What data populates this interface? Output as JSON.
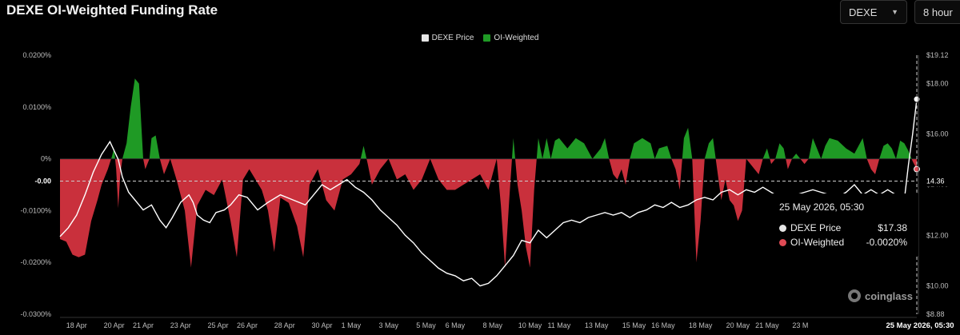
{
  "title": "DEXE OI-Weighted Funding Rate",
  "controls": {
    "symbol": "DEXE",
    "interval": "8 hour"
  },
  "colors": {
    "price_line": "#ffffff",
    "positive": "#1f9a25",
    "negative": "#c9303c",
    "crosshair": "#cccccc",
    "price_marker": "#ffffff",
    "funding_marker": "#e04b55"
  },
  "chart_data": {
    "type": "area",
    "legend_position": "top-center",
    "series": [
      {
        "name": "DEXE Price",
        "axis": "right",
        "type": "line",
        "values": [
          [
            0,
            11.95
          ],
          [
            4,
            12.3
          ],
          [
            8,
            12.8
          ],
          [
            12,
            13.6
          ],
          [
            16,
            14.5
          ],
          [
            20,
            15.2
          ],
          [
            24,
            15.7
          ],
          [
            28,
            15.0
          ],
          [
            30,
            14.3
          ],
          [
            33,
            13.7
          ],
          [
            36,
            13.4
          ],
          [
            40,
            13.0
          ],
          [
            44,
            13.2
          ],
          [
            48,
            12.6
          ],
          [
            51,
            12.3
          ],
          [
            54,
            12.7
          ],
          [
            58,
            13.3
          ],
          [
            62,
            13.6
          ],
          [
            64,
            13.3
          ],
          [
            66,
            12.8
          ],
          [
            69,
            12.6
          ],
          [
            72,
            12.5
          ],
          [
            75,
            12.9
          ],
          [
            79,
            13.0
          ],
          [
            82,
            13.2
          ],
          [
            86,
            13.6
          ],
          [
            90,
            13.5
          ],
          [
            95,
            13.0
          ],
          [
            100,
            13.3
          ],
          [
            106,
            13.6
          ],
          [
            112,
            13.4
          ],
          [
            118,
            13.2
          ],
          [
            122,
            13.6
          ],
          [
            126,
            14.0
          ],
          [
            130,
            13.8
          ],
          [
            134,
            14.0
          ],
          [
            138,
            14.2
          ],
          [
            142,
            13.9
          ],
          [
            146,
            13.7
          ],
          [
            150,
            13.4
          ],
          [
            154,
            13.0
          ],
          [
            158,
            12.7
          ],
          [
            162,
            12.4
          ],
          [
            166,
            12.0
          ],
          [
            170,
            11.7
          ],
          [
            174,
            11.3
          ],
          [
            178,
            11.0
          ],
          [
            182,
            10.7
          ],
          [
            186,
            10.5
          ],
          [
            190,
            10.4
          ],
          [
            194,
            10.2
          ],
          [
            198,
            10.3
          ],
          [
            202,
            10.0
          ],
          [
            206,
            10.1
          ],
          [
            210,
            10.4
          ],
          [
            214,
            10.8
          ],
          [
            218,
            11.2
          ],
          [
            222,
            11.8
          ],
          [
            226,
            11.7
          ],
          [
            230,
            12.2
          ],
          [
            234,
            11.9
          ],
          [
            238,
            12.2
          ],
          [
            242,
            12.5
          ],
          [
            246,
            12.6
          ],
          [
            250,
            12.5
          ],
          [
            254,
            12.7
          ],
          [
            258,
            12.8
          ],
          [
            262,
            12.9
          ],
          [
            266,
            12.8
          ],
          [
            270,
            12.9
          ],
          [
            274,
            12.7
          ],
          [
            278,
            12.9
          ],
          [
            282,
            13.0
          ],
          [
            286,
            13.2
          ],
          [
            290,
            13.1
          ],
          [
            294,
            13.3
          ],
          [
            298,
            13.1
          ],
          [
            302,
            13.2
          ],
          [
            306,
            13.4
          ],
          [
            310,
            13.5
          ],
          [
            314,
            13.4
          ],
          [
            318,
            13.7
          ],
          [
            322,
            13.8
          ],
          [
            326,
            13.6
          ],
          [
            330,
            13.8
          ],
          [
            334,
            13.7
          ],
          [
            338,
            13.9
          ],
          [
            342,
            13.7
          ],
          [
            346,
            13.5
          ],
          [
            348,
            13.1
          ],
          [
            350,
            13.5
          ],
          [
            354,
            13.6
          ],
          [
            358,
            13.7
          ],
          [
            362,
            13.8
          ],
          [
            366,
            13.7
          ],
          [
            370,
            13.6
          ],
          [
            374,
            13.5
          ],
          [
            378,
            13.7
          ],
          [
            382,
            14.0
          ],
          [
            386,
            13.6
          ],
          [
            390,
            13.8
          ],
          [
            394,
            13.6
          ],
          [
            398,
            13.8
          ],
          [
            402,
            13.6
          ],
          [
            406,
            13.4
          ],
          [
            408,
            14.8
          ],
          [
            410,
            16.0
          ],
          [
            412,
            17.38
          ]
        ]
      },
      {
        "name": "OI-Weighted",
        "axis": "left",
        "type": "area",
        "unit": "%",
        "values": [
          [
            0,
            -0.0155
          ],
          [
            3,
            -0.016
          ],
          [
            6,
            -0.0185
          ],
          [
            9,
            -0.019
          ],
          [
            12,
            -0.0185
          ],
          [
            15,
            -0.012
          ],
          [
            18,
            -0.008
          ],
          [
            20,
            -0.005
          ],
          [
            23,
            -0.002
          ],
          [
            25,
            0.0005
          ],
          [
            26,
            0.002
          ],
          [
            27,
            -0.002
          ],
          [
            28,
            -0.0095
          ],
          [
            29,
            -0.003
          ],
          [
            30,
            0.0
          ],
          [
            32,
            0.003
          ],
          [
            34,
            0.01
          ],
          [
            36,
            0.0155
          ],
          [
            38,
            0.0145
          ],
          [
            40,
            0.0
          ],
          [
            41,
            -0.002
          ],
          [
            43,
            0.0
          ],
          [
            44,
            0.004
          ],
          [
            46,
            0.0045
          ],
          [
            48,
            0.0
          ],
          [
            50,
            -0.003
          ],
          [
            53,
            0.0
          ],
          [
            56,
            -0.004
          ],
          [
            60,
            -0.01
          ],
          [
            63,
            -0.021
          ],
          [
            66,
            -0.009
          ],
          [
            70,
            -0.006
          ],
          [
            74,
            -0.007
          ],
          [
            78,
            -0.004
          ],
          [
            82,
            -0.012
          ],
          [
            85,
            -0.019
          ],
          [
            88,
            -0.004
          ],
          [
            91,
            -0.002
          ],
          [
            94,
            -0.004
          ],
          [
            97,
            -0.006
          ],
          [
            100,
            -0.01
          ],
          [
            103,
            -0.018
          ],
          [
            106,
            -0.0075
          ],
          [
            110,
            -0.0085
          ],
          [
            114,
            -0.013
          ],
          [
            117,
            -0.019
          ],
          [
            120,
            -0.005
          ],
          [
            124,
            -0.002
          ],
          [
            128,
            -0.008
          ],
          [
            132,
            -0.01
          ],
          [
            136,
            -0.004
          ],
          [
            140,
            -0.003
          ],
          [
            144,
            -0.001
          ],
          [
            146,
            0.0025
          ],
          [
            148,
            -0.001
          ],
          [
            150,
            -0.005
          ],
          [
            154,
            -0.002
          ],
          [
            158,
            0.0
          ],
          [
            162,
            -0.004
          ],
          [
            166,
            -0.003
          ],
          [
            170,
            -0.006
          ],
          [
            174,
            -0.004
          ],
          [
            178,
            0.0
          ],
          [
            182,
            -0.004
          ],
          [
            186,
            -0.006
          ],
          [
            190,
            -0.006
          ],
          [
            194,
            -0.005
          ],
          [
            198,
            -0.004
          ],
          [
            202,
            -0.003
          ],
          [
            206,
            -0.006
          ],
          [
            210,
            0.0
          ],
          [
            212,
            -0.009
          ],
          [
            214,
            -0.021
          ],
          [
            216,
            -0.008
          ],
          [
            218,
            0.004
          ],
          [
            220,
            -0.005
          ],
          [
            222,
            -0.01
          ],
          [
            224,
            -0.017
          ],
          [
            226,
            -0.021
          ],
          [
            228,
            -0.006
          ],
          [
            230,
            0.004
          ],
          [
            232,
            0.0
          ],
          [
            234,
            0.004
          ],
          [
            236,
            0.0
          ],
          [
            238,
            0.0035
          ],
          [
            240,
            0.004
          ],
          [
            244,
            0.002
          ],
          [
            248,
            0.004
          ],
          [
            252,
            0.003
          ],
          [
            256,
            0.0
          ],
          [
            260,
            0.002
          ],
          [
            262,
            0.004
          ],
          [
            264,
            0.0
          ],
          [
            266,
            -0.003
          ],
          [
            268,
            -0.004
          ],
          [
            270,
            -0.002
          ],
          [
            272,
            -0.005
          ],
          [
            274,
            0.0
          ],
          [
            276,
            0.003
          ],
          [
            280,
            0.004
          ],
          [
            284,
            0.003
          ],
          [
            286,
            0.0
          ],
          [
            288,
            0.002
          ],
          [
            292,
            0.0025
          ],
          [
            294,
            0.0
          ],
          [
            296,
            -0.002
          ],
          [
            298,
            -0.006
          ],
          [
            300,
            0.004
          ],
          [
            302,
            0.006
          ],
          [
            304,
            0.0
          ],
          [
            306,
            -0.02
          ],
          [
            308,
            -0.012
          ],
          [
            310,
            0.0
          ],
          [
            312,
            0.003
          ],
          [
            314,
            0.004
          ],
          [
            316,
            -0.002
          ],
          [
            318,
            -0.008
          ],
          [
            320,
            -0.004
          ],
          [
            322,
            -0.008
          ],
          [
            324,
            -0.009
          ],
          [
            326,
            -0.012
          ],
          [
            328,
            -0.01
          ],
          [
            330,
            0.0
          ],
          [
            332,
            -0.001
          ],
          [
            334,
            -0.002
          ],
          [
            336,
            -0.003
          ],
          [
            338,
            0.0
          ],
          [
            340,
            0.002
          ],
          [
            342,
            -0.001
          ],
          [
            344,
            0.0
          ],
          [
            346,
            0.003
          ],
          [
            348,
            0.002
          ],
          [
            350,
            -0.002
          ],
          [
            352,
            0.0
          ],
          [
            354,
            0.001
          ],
          [
            356,
            0.0
          ],
          [
            358,
            -0.001
          ],
          [
            360,
            0.0
          ],
          [
            362,
            0.004
          ],
          [
            364,
            0.002
          ],
          [
            366,
            0.0
          ],
          [
            368,
            0.0025
          ],
          [
            370,
            0.004
          ],
          [
            374,
            0.0035
          ],
          [
            378,
            0.002
          ],
          [
            382,
            0.001
          ],
          [
            386,
            0.004
          ],
          [
            388,
            0.0
          ],
          [
            390,
            -0.002
          ],
          [
            392,
            -0.003
          ],
          [
            394,
            0.0
          ],
          [
            396,
            0.0025
          ],
          [
            398,
            0.003
          ],
          [
            400,
            0.002
          ],
          [
            402,
            0.0
          ],
          [
            404,
            0.0035
          ],
          [
            406,
            0.003
          ],
          [
            408,
            0.0015
          ],
          [
            410,
            -0.0005
          ],
          [
            412,
            -0.002
          ]
        ]
      }
    ],
    "x_tick_labels": [
      "18 Apr",
      "20 Apr",
      "21 Apr",
      "23 Apr",
      "25 Apr",
      "26 Apr",
      "28 Apr",
      "30 Apr",
      "1 May",
      "3 May",
      "5 May",
      "6 May",
      "8 May",
      "10 May",
      "11 May",
      "13 May",
      "15 May",
      "16 May",
      "18 May",
      "20 May",
      "21 May",
      "23 M"
    ],
    "x_tick_positions": [
      8,
      26,
      40,
      58,
      76,
      90,
      108,
      126,
      140,
      158,
      176,
      190,
      208,
      226,
      240,
      258,
      276,
      290,
      308,
      326,
      340,
      356
    ],
    "x_crosshair_label": "25 May 2026, 05:30",
    "xlim": [
      0,
      412
    ],
    "left_axis": {
      "ticks": [
        "0.0200%",
        "0.0100%",
        "0%",
        "-0.0100%",
        "-0.0200%",
        "-0.0300%"
      ],
      "tick_values": [
        0.02,
        0.01,
        0,
        -0.01,
        -0.02,
        -0.03
      ],
      "range": [
        -0.03,
        0.02
      ],
      "crosshair_label": "-0.00"
    },
    "right_axis": {
      "ticks": [
        "$19.12",
        "$18.00",
        "$16.00",
        "$14.00",
        "$12.00",
        "$10.00",
        "$8.88"
      ],
      "tick_values": [
        19.12,
        18,
        16,
        14,
        12,
        10,
        8.88
      ],
      "range": [
        8.88,
        19.12
      ],
      "crosshair_label": "14.36"
    },
    "grid": false
  },
  "legend": {
    "items": [
      {
        "label": "DEXE Price",
        "color": "#e6e6e6"
      },
      {
        "label": "OI-Weighted",
        "color": "#1f9a25"
      }
    ]
  },
  "tooltip": {
    "title": "25 May 2026, 05:30",
    "rows": [
      {
        "label": "DEXE Price",
        "value": "$17.38",
        "color": "#e6e6e6"
      },
      {
        "label": "OI-Weighted",
        "value": "-0.0020%",
        "color": "#e04b55"
      }
    ]
  },
  "watermark": "coinglass"
}
